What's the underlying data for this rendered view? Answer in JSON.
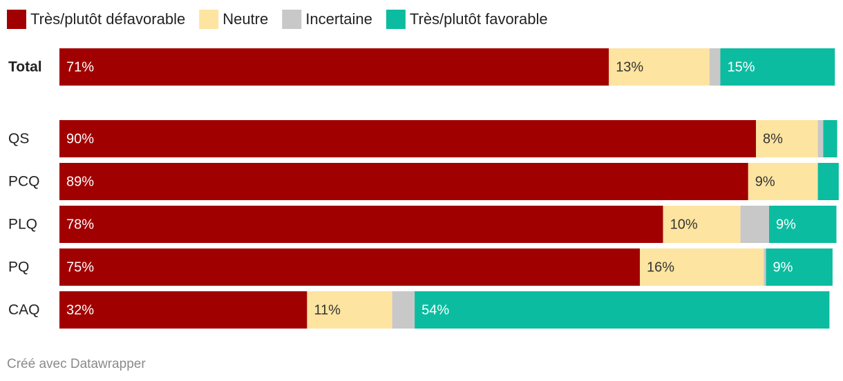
{
  "chart_data": {
    "type": "stacked_bar_horizontal",
    "categories": [
      "Total",
      "QS",
      "PCQ",
      "PLQ",
      "PQ",
      "CAQ"
    ],
    "xlim": [
      0,
      100
    ],
    "legend": "top-left",
    "series": [
      {
        "name": "Très/plutôt défavorable",
        "color": "#a10000",
        "values": [
          71,
          90,
          89,
          78,
          75,
          32
        ],
        "value_labels": [
          "71%",
          "90%",
          "89%",
          "78%",
          "75%",
          "32%"
        ]
      },
      {
        "name": "Neutre",
        "color": "#fde4a0",
        "values": [
          13,
          8,
          9,
          10,
          16,
          11
        ],
        "value_labels": [
          "13%",
          "8%",
          "9%",
          "10%",
          "16%",
          "11%"
        ]
      },
      {
        "name": "Incertaine",
        "color": "#c8c8c8",
        "values": [
          1.4,
          0.7,
          0,
          3.7,
          0.3,
          2.9
        ],
        "value_labels": [
          null,
          null,
          null,
          null,
          null,
          null
        ]
      },
      {
        "name": "Très/plutôt favorable",
        "color": "#0bbca0",
        "values": [
          14.8,
          1.8,
          2.7,
          8.7,
          8.6,
          53.6
        ],
        "value_labels": [
          "15%",
          null,
          null,
          "9%",
          "9%",
          "54%"
        ]
      }
    ],
    "footer": "Créé avec Datawrapper"
  }
}
